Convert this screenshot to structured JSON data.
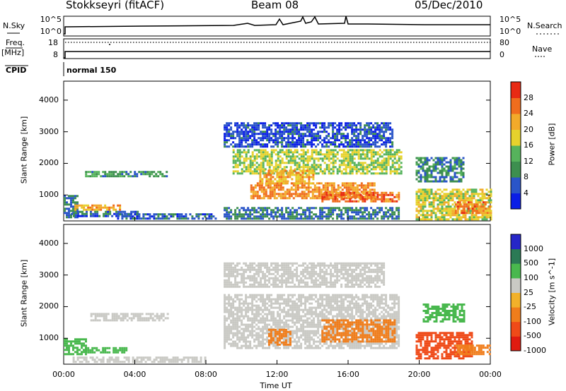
{
  "header": {
    "title": "Stokkseyri (fitACF)",
    "beam": "Beam 08",
    "date": "05/Dec/2010"
  },
  "panel_labels": {
    "nsky": "N.Sky",
    "nsearch": "N.Search",
    "freq": "Freq.",
    "freq_unit": "[MHz]",
    "nave": "Nave",
    "cpid": "CPID",
    "cpid_value": "normal 150"
  },
  "colors": {
    "power_scale": [
      "#0a1ee6",
      "#2a55c8",
      "#3d8f4f",
      "#56b35c",
      "#e6d22d",
      "#f2aa2a",
      "#f06d1d",
      "#e82a14"
    ],
    "velocity_scale": [
      "#2626c8",
      "#2b7a55",
      "#49b84e",
      "#c9c9c4",
      "#f2b12a",
      "#f07d1b",
      "#ef4a18",
      "#e01b10"
    ]
  },
  "chart_data": [
    {
      "type": "line",
      "title": "N.Sky / N.Search",
      "ylabel_left": "N.Sky",
      "ylabel_right": "N.Search",
      "y_ticks_left": [
        "10^5",
        "10^0"
      ],
      "y_ticks_right": [
        "10^5",
        "10^0"
      ],
      "xlim": [
        "00:00",
        "24:00"
      ]
    },
    {
      "type": "line",
      "title": "Freq. / Nave",
      "ylabel_left": "Freq. [MHz]",
      "ylabel_right": "Nave",
      "y_ticks_left": [
        18,
        8
      ],
      "y_ticks_right": [
        80,
        0
      ],
      "xlim": [
        "00:00",
        "24:00"
      ]
    },
    {
      "type": "heatmap",
      "quantity": "Power",
      "colorbar_label": "Power [dB]",
      "colorbar_ticks": [
        4,
        8,
        12,
        16,
        20,
        24,
        28
      ],
      "ylabel": "Slant Range [km]",
      "y_ticks": [
        1000,
        2000,
        3000,
        4000
      ],
      "ylim": [
        180,
        4600
      ],
      "x_ticks": [
        "00:00",
        "04:00",
        "08:00",
        "12:00",
        "16:00",
        "20:00",
        "00:00"
      ],
      "xlim_hours": [
        0,
        24
      ],
      "regions": [
        {
          "t": [
            0.0,
            0.8
          ],
          "r": [
            300,
            1000
          ],
          "val": 10
        },
        {
          "t": [
            0.6,
            3.2
          ],
          "r": [
            560,
            700
          ],
          "val": 24
        },
        {
          "t": [
            0.4,
            4.2
          ],
          "r": [
            350,
            500
          ],
          "val": 9
        },
        {
          "t": [
            3.0,
            8.6
          ],
          "r": [
            280,
            420
          ],
          "val": 8
        },
        {
          "t": [
            1.2,
            5.8
          ],
          "r": [
            1580,
            1760
          ],
          "val": 13
        },
        {
          "t": [
            9.0,
            18.8
          ],
          "r": [
            260,
            620
          ],
          "val": 10
        },
        {
          "t": [
            9.5,
            19.0
          ],
          "r": [
            1650,
            2450
          ],
          "val": 18
        },
        {
          "t": [
            10.5,
            17.5
          ],
          "r": [
            900,
            1400
          ],
          "val": 26
        },
        {
          "t": [
            11.0,
            14.0
          ],
          "r": [
            1350,
            1800
          ],
          "val": 24
        },
        {
          "t": [
            14.5,
            18.8
          ],
          "r": [
            800,
            1100
          ],
          "val": 28
        },
        {
          "t": [
            9.0,
            18.5
          ],
          "r": [
            2550,
            3300
          ],
          "val": 7
        },
        {
          "t": [
            19.8,
            24.0
          ],
          "r": [
            250,
            1200
          ],
          "val": 20
        },
        {
          "t": [
            22.0,
            24.0
          ],
          "r": [
            450,
            800
          ],
          "val": 27
        },
        {
          "t": [
            19.8,
            22.5
          ],
          "r": [
            1400,
            2200
          ],
          "val": 11
        }
      ]
    },
    {
      "type": "heatmap",
      "quantity": "Velocity",
      "colorbar_label": "Velocity [m s^-1]",
      "colorbar_ticks": [
        1000,
        500,
        100,
        25,
        -25,
        -100,
        -500,
        -1000
      ],
      "ylabel": "Slant Range [km]",
      "y_ticks": [
        1000,
        2000,
        3000,
        4000
      ],
      "ylim": [
        180,
        4600
      ],
      "x_ticks": [
        "00:00",
        "04:00",
        "08:00",
        "12:00",
        "16:00",
        "20:00",
        "00:00"
      ],
      "xlabel": "Time UT",
      "xlim_hours": [
        0,
        24
      ],
      "regions": [
        {
          "t": [
            0.0,
            1.2
          ],
          "r": [
            500,
            1000
          ],
          "val": 100
        },
        {
          "t": [
            1.2,
            3.5
          ],
          "r": [
            560,
            720
          ],
          "val": 100
        },
        {
          "t": [
            0.5,
            8.0
          ],
          "r": [
            250,
            420
          ],
          "val": 0
        },
        {
          "t": [
            1.5,
            5.8
          ],
          "r": [
            1550,
            1800
          ],
          "val": 0
        },
        {
          "t": [
            9.0,
            18.8
          ],
          "r": [
            700,
            2400
          ],
          "val": 0
        },
        {
          "t": [
            11.5,
            12.8
          ],
          "r": [
            800,
            1300
          ],
          "val": -100
        },
        {
          "t": [
            14.5,
            18.6
          ],
          "r": [
            900,
            1600
          ],
          "val": -100
        },
        {
          "t": [
            9.0,
            18.0
          ],
          "r": [
            2600,
            3400
          ],
          "val": 0
        },
        {
          "t": [
            19.8,
            23.0
          ],
          "r": [
            350,
            1200
          ],
          "val": -500
        },
        {
          "t": [
            22.0,
            24.0
          ],
          "r": [
            500,
            800
          ],
          "val": -100
        },
        {
          "t": [
            20.2,
            22.5
          ],
          "r": [
            1500,
            2100
          ],
          "val": 100
        }
      ]
    }
  ]
}
